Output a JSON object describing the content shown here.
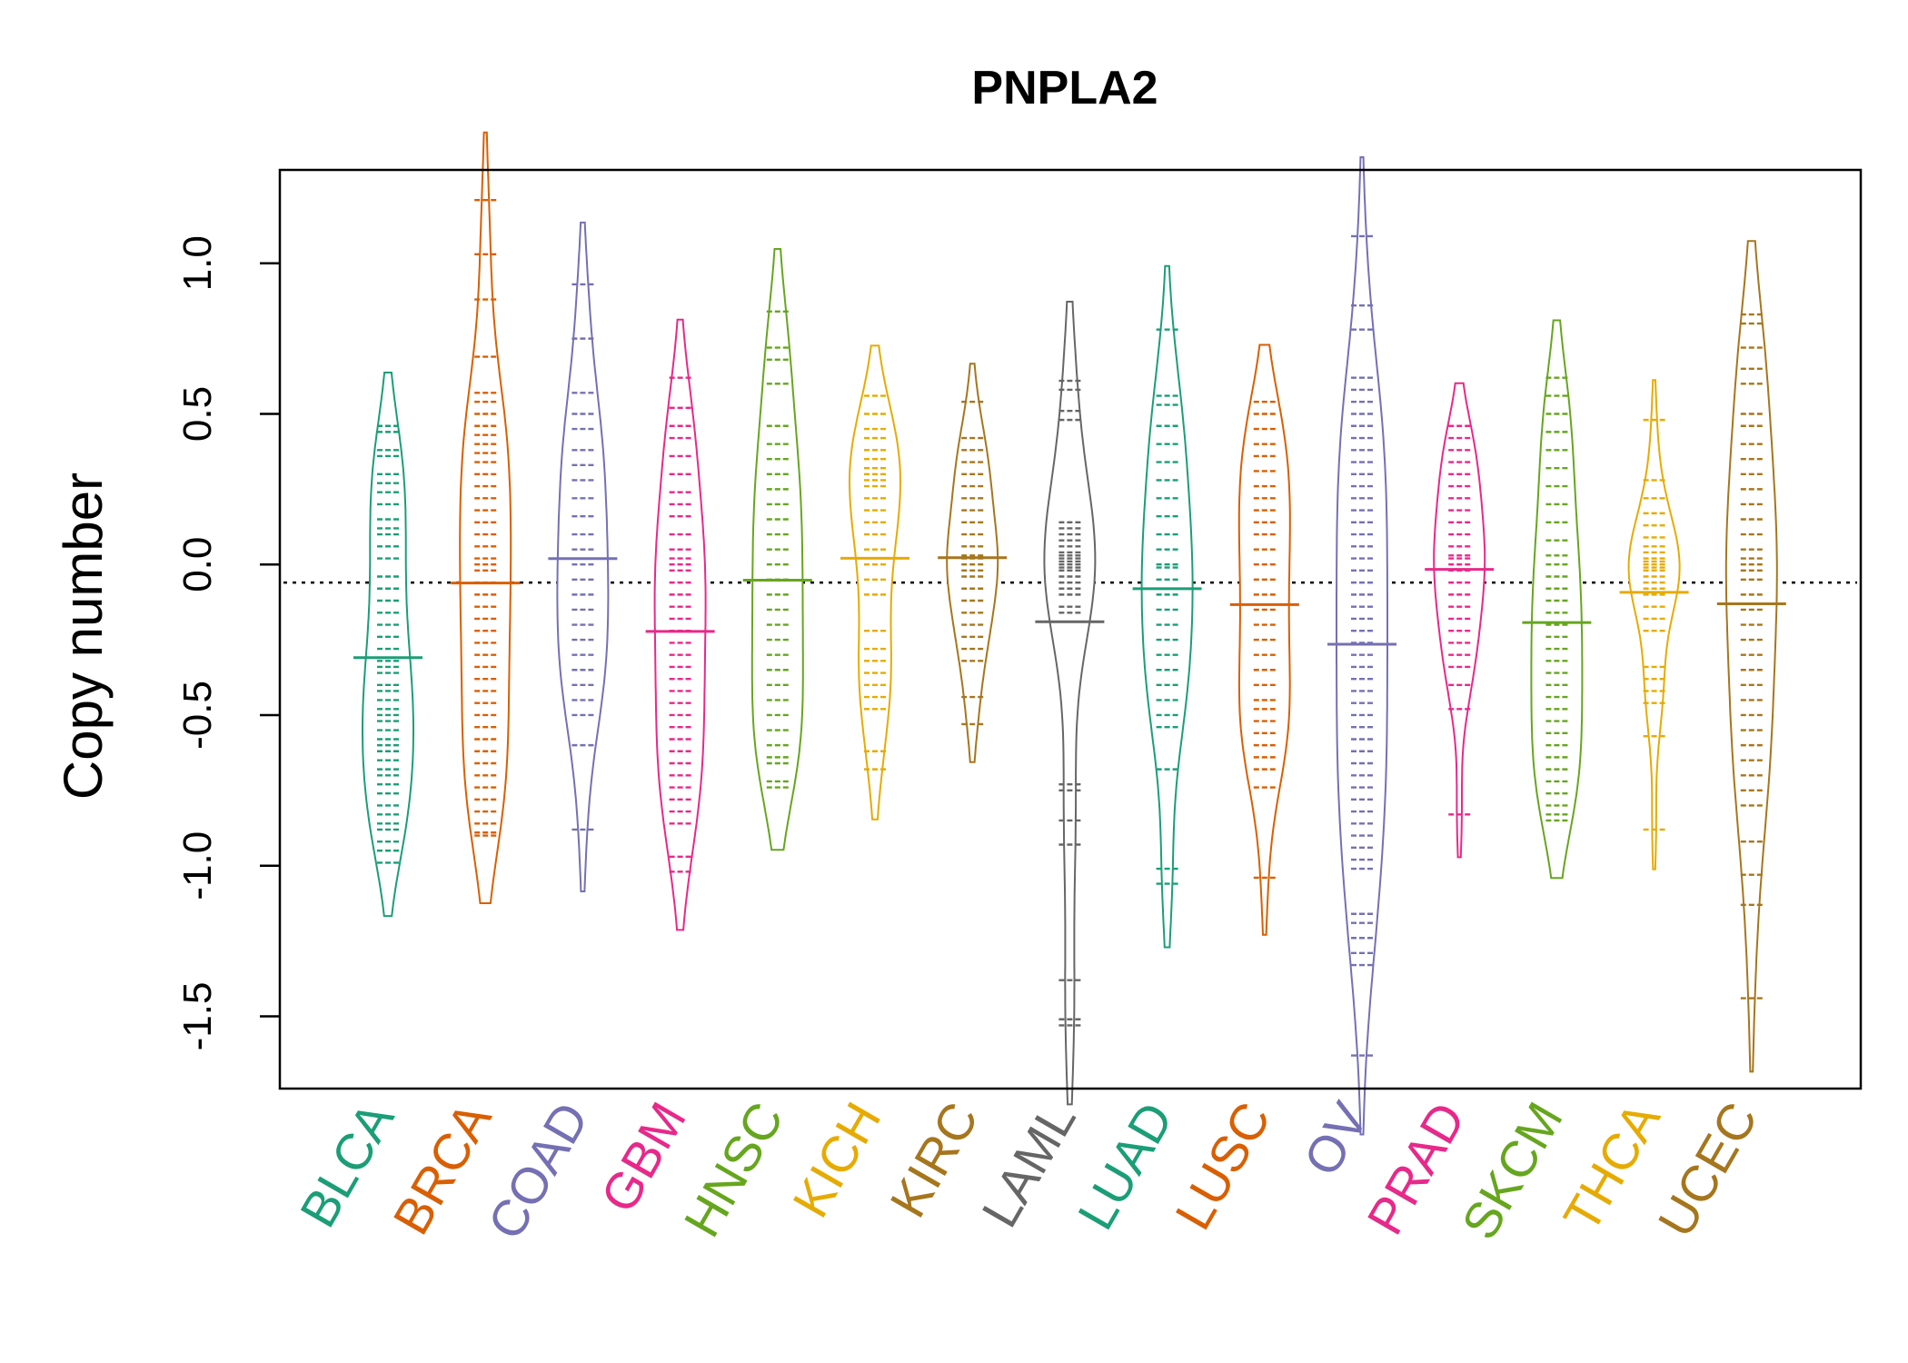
{
  "chart_data": {
    "type": "beanplot",
    "title": "PNPLA2",
    "xlabel": "",
    "ylabel": "Copy number",
    "ylim": [
      -1.74,
      1.31
    ],
    "yticks": [
      "1.0",
      "0.5",
      "0.0",
      "-0.5",
      "-1.0",
      "-1.5"
    ],
    "reference_line": -0.06,
    "grid": false,
    "legend": "none",
    "categories": [
      {
        "name": "BLCA",
        "color": "#1b9e77",
        "values": [
          0.46,
          0.44,
          0.38,
          0.36,
          0.3,
          0.27,
          0.24,
          0.2,
          0.15,
          0.12,
          0.1,
          0.06,
          0.02,
          -0.04,
          -0.08,
          -0.12,
          -0.16,
          -0.2,
          -0.24,
          -0.28,
          -0.32,
          -0.34,
          -0.36,
          -0.4,
          -0.42,
          -0.45,
          -0.48,
          -0.5,
          -0.52,
          -0.55,
          -0.58,
          -0.6,
          -0.62,
          -0.65,
          -0.68,
          -0.7,
          -0.73,
          -0.76,
          -0.8,
          -0.83,
          -0.86,
          -0.88,
          -0.92,
          -0.95,
          -0.99
        ]
      },
      {
        "name": "BRCA",
        "color": "#d95f02",
        "values": [
          1.21,
          1.03,
          0.88,
          0.69,
          0.57,
          0.54,
          0.5,
          0.46,
          0.43,
          0.4,
          0.37,
          0.34,
          0.3,
          0.26,
          0.22,
          0.18,
          0.14,
          0.1,
          0.06,
          0.02,
          0.0,
          -0.02,
          -0.06,
          -0.1,
          -0.14,
          -0.18,
          -0.22,
          -0.26,
          -0.3,
          -0.34,
          -0.38,
          -0.42,
          -0.46,
          -0.5,
          -0.54,
          -0.58,
          -0.62,
          -0.66,
          -0.7,
          -0.74,
          -0.78,
          -0.82,
          -0.86,
          -0.89,
          -0.9
        ]
      },
      {
        "name": "COAD",
        "color": "#7570b3",
        "values": [
          0.93,
          0.75,
          0.57,
          0.5,
          0.45,
          0.38,
          0.33,
          0.28,
          0.22,
          0.16,
          0.1,
          0.05,
          0.0,
          -0.05,
          -0.1,
          -0.15,
          -0.2,
          -0.25,
          -0.3,
          -0.35,
          -0.4,
          -0.45,
          -0.5,
          -0.6,
          -0.88
        ]
      },
      {
        "name": "GBM",
        "color": "#e7298a",
        "values": [
          0.62,
          0.52,
          0.46,
          0.42,
          0.36,
          0.3,
          0.24,
          0.2,
          0.16,
          0.1,
          0.05,
          0.02,
          0.0,
          -0.02,
          -0.06,
          -0.1,
          -0.14,
          -0.18,
          -0.22,
          -0.26,
          -0.3,
          -0.34,
          -0.38,
          -0.42,
          -0.46,
          -0.5,
          -0.54,
          -0.58,
          -0.62,
          -0.66,
          -0.7,
          -0.74,
          -0.78,
          -0.82,
          -0.86,
          -0.97,
          -1.02
        ]
      },
      {
        "name": "HNSC",
        "color": "#66a61e",
        "values": [
          0.84,
          0.72,
          0.68,
          0.6,
          0.46,
          0.4,
          0.35,
          0.3,
          0.25,
          0.2,
          0.15,
          0.1,
          0.05,
          0.0,
          -0.05,
          -0.1,
          -0.15,
          -0.2,
          -0.25,
          -0.3,
          -0.35,
          -0.4,
          -0.45,
          -0.5,
          -0.55,
          -0.6,
          -0.64,
          -0.66,
          -0.72,
          -0.74
        ]
      },
      {
        "name": "KICH",
        "color": "#e6ab02",
        "values": [
          0.56,
          0.5,
          0.45,
          0.42,
          0.38,
          0.35,
          0.32,
          0.3,
          0.28,
          0.26,
          0.22,
          0.18,
          0.14,
          0.1,
          0.05,
          0.0,
          -0.05,
          -0.1,
          -0.22,
          -0.28,
          -0.32,
          -0.36,
          -0.4,
          -0.44,
          -0.48,
          -0.62,
          -0.68
        ]
      },
      {
        "name": "KIRC",
        "color": "#a6761d",
        "values": [
          0.54,
          0.42,
          0.38,
          0.34,
          0.3,
          0.26,
          0.22,
          0.18,
          0.14,
          0.1,
          0.06,
          0.03,
          0.02,
          0.0,
          -0.02,
          -0.04,
          -0.08,
          -0.12,
          -0.16,
          -0.2,
          -0.24,
          -0.28,
          -0.32,
          -0.44,
          -0.53
        ]
      },
      {
        "name": "LAML",
        "color": "#666666",
        "values": [
          0.61,
          0.58,
          0.51,
          0.48,
          0.14,
          0.12,
          0.1,
          0.08,
          0.06,
          0.04,
          0.03,
          0.02,
          0.01,
          0.0,
          -0.01,
          -0.02,
          -0.04,
          -0.06,
          -0.08,
          -0.1,
          -0.14,
          -0.16,
          -0.73,
          -0.75,
          -0.85,
          -0.93,
          -1.38,
          -1.51,
          -1.53
        ]
      },
      {
        "name": "LUAD",
        "color": "#1b9e77",
        "values": [
          0.78,
          0.56,
          0.53,
          0.46,
          0.4,
          0.34,
          0.28,
          0.22,
          0.16,
          0.1,
          0.05,
          0.0,
          -0.01,
          -0.05,
          -0.1,
          -0.15,
          -0.2,
          -0.25,
          -0.3,
          -0.35,
          -0.4,
          -0.45,
          -0.5,
          -0.54,
          -0.68,
          -1.01,
          -1.06
        ]
      },
      {
        "name": "LUSC",
        "color": "#d95f02",
        "values": [
          0.54,
          0.5,
          0.45,
          0.4,
          0.36,
          0.31,
          0.26,
          0.22,
          0.18,
          0.14,
          0.1,
          0.05,
          0.0,
          -0.05,
          -0.1,
          -0.15,
          -0.2,
          -0.25,
          -0.3,
          -0.35,
          -0.4,
          -0.45,
          -0.48,
          -0.52,
          -0.56,
          -0.6,
          -0.64,
          -0.68,
          -0.74,
          -1.04
        ]
      },
      {
        "name": "OV",
        "color": "#7570b3",
        "values": [
          1.09,
          0.86,
          0.78,
          0.62,
          0.58,
          0.54,
          0.5,
          0.46,
          0.42,
          0.38,
          0.34,
          0.3,
          0.26,
          0.22,
          0.18,
          0.14,
          0.1,
          0.06,
          0.02,
          -0.02,
          -0.06,
          -0.1,
          -0.14,
          -0.18,
          -0.22,
          -0.26,
          -0.3,
          -0.34,
          -0.38,
          -0.42,
          -0.46,
          -0.5,
          -0.54,
          -0.58,
          -0.62,
          -0.66,
          -0.7,
          -0.74,
          -0.78,
          -0.82,
          -0.86,
          -0.9,
          -0.94,
          -0.98,
          -1.01,
          -1.16,
          -1.19,
          -1.24,
          -1.29,
          -1.33,
          -1.63
        ]
      },
      {
        "name": "PRAD",
        "color": "#e7298a",
        "values": [
          0.46,
          0.42,
          0.38,
          0.34,
          0.3,
          0.26,
          0.22,
          0.18,
          0.14,
          0.1,
          0.06,
          0.03,
          0.02,
          0.0,
          -0.02,
          -0.06,
          -0.1,
          -0.14,
          -0.18,
          -0.22,
          -0.26,
          -0.3,
          -0.34,
          -0.4,
          -0.48,
          -0.83
        ]
      },
      {
        "name": "SKCM",
        "color": "#66a61e",
        "values": [
          0.62,
          0.56,
          0.5,
          0.44,
          0.38,
          0.32,
          0.26,
          0.2,
          0.14,
          0.08,
          0.03,
          0.0,
          -0.04,
          -0.08,
          -0.12,
          -0.16,
          -0.2,
          -0.24,
          -0.28,
          -0.32,
          -0.36,
          -0.4,
          -0.44,
          -0.48,
          -0.52,
          -0.56,
          -0.6,
          -0.64,
          -0.68,
          -0.72,
          -0.76,
          -0.8,
          -0.83,
          -0.85
        ]
      },
      {
        "name": "THCA",
        "color": "#e6ab02",
        "values": [
          0.48,
          0.28,
          0.22,
          0.17,
          0.13,
          0.09,
          0.06,
          0.04,
          0.02,
          0.01,
          0.0,
          -0.01,
          -0.02,
          -0.04,
          -0.06,
          -0.08,
          -0.1,
          -0.14,
          -0.18,
          -0.22,
          -0.34,
          -0.38,
          -0.42,
          -0.46,
          -0.57,
          -0.88
        ]
      },
      {
        "name": "UCEC",
        "color": "#a6761d",
        "values": [
          0.83,
          0.8,
          0.72,
          0.65,
          0.6,
          0.5,
          0.46,
          0.4,
          0.35,
          0.3,
          0.25,
          0.2,
          0.15,
          0.1,
          0.05,
          0.02,
          0.0,
          -0.02,
          -0.05,
          -0.1,
          -0.15,
          -0.2,
          -0.25,
          -0.3,
          -0.35,
          -0.4,
          -0.45,
          -0.5,
          -0.55,
          -0.6,
          -0.65,
          -0.7,
          -0.75,
          -0.8,
          -0.92,
          -1.03,
          -1.13,
          -1.44
        ]
      }
    ]
  }
}
